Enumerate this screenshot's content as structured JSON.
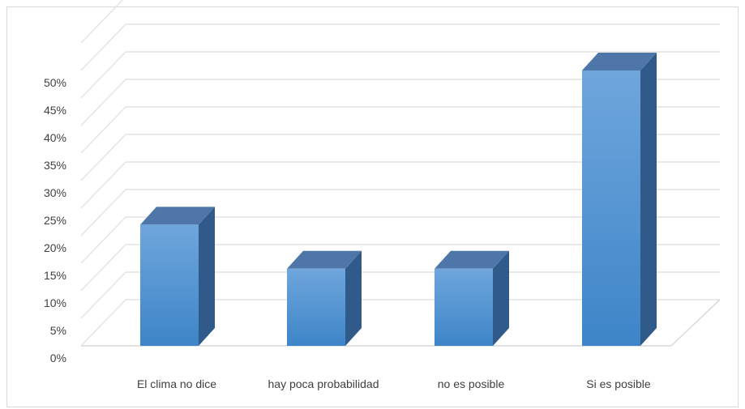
{
  "chart_data": {
    "type": "bar",
    "style": "3d-column",
    "title": "",
    "xlabel": "",
    "ylabel": "",
    "categories": [
      "El clima no dice",
      "hay poca probabilidad",
      "no es posible",
      "Si es posible"
    ],
    "values": [
      22,
      14,
      14,
      50
    ],
    "y_unit": "%",
    "ylim": [
      0,
      55
    ],
    "yticks": [
      "0%",
      "5%",
      "10%",
      "15%",
      "20%",
      "25%",
      "30%",
      "35%",
      "40%",
      "45%",
      "50%"
    ],
    "grid": true,
    "legend": "none",
    "colors": {
      "bar_front_top": "#6fa6dc",
      "bar_front_bottom": "#3d85c8",
      "bar_top": "#4e76a8",
      "bar_side": "#305a8a",
      "grid": "#e4e4e4",
      "axis_text": "#404040"
    }
  }
}
